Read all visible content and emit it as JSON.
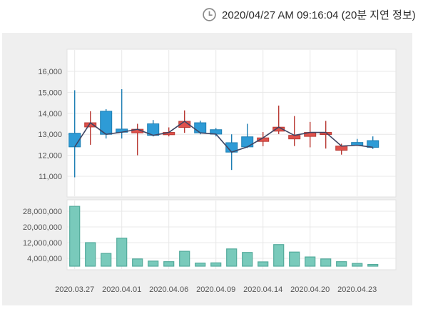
{
  "header": {
    "timestamp_text": "2020/04/27 AM 09:16:04 (20분 지연 정보)",
    "clock_icon": "clock-outline"
  },
  "colors": {
    "panel_bg": "#efefef",
    "plot_bg": "#ffffff",
    "plot_border": "#e2e2e2",
    "grid": "#e8e8e8",
    "axis_text": "#555555",
    "header_text": "#2b2b2b",
    "icon_gray": "#8a8a8a",
    "candle_up_fill": "#e0524c",
    "candle_up_border": "#b93a34",
    "candle_down_fill": "#2e9bd6",
    "candle_down_border": "#1d7eb3",
    "close_line": "#3f4563",
    "volume_fill": "#79cabb",
    "volume_border": "#54ab9c"
  },
  "chart_data": {
    "type": "candlestick-with-volume",
    "title": "",
    "legend": [],
    "grid": "on",
    "price_axis": {
      "ticks": [
        {
          "value": 16000,
          "label": "16,000"
        },
        {
          "value": 15000,
          "label": "15,000"
        },
        {
          "value": 14000,
          "label": "14,000"
        },
        {
          "value": 13000,
          "label": "13,000"
        },
        {
          "value": 12000,
          "label": "12,000"
        },
        {
          "value": 11000,
          "label": "11,000"
        }
      ],
      "ylim": [
        10000,
        17050
      ]
    },
    "volume_axis": {
      "ticks": [
        {
          "value": 28000000,
          "label": "28,000,000"
        },
        {
          "value": 20000000,
          "label": "20,000,000"
        },
        {
          "value": 12000000,
          "label": "12,000,000"
        },
        {
          "value": 4000000,
          "label": "4,000,000"
        }
      ],
      "ylim": [
        0,
        34000000
      ]
    },
    "x_ticks": [
      {
        "candle_index": 0,
        "label": "2020.03.27"
      },
      {
        "candle_index": 3,
        "label": "2020.04.01"
      },
      {
        "candle_index": 6,
        "label": "2020.04.06"
      },
      {
        "candle_index": 9,
        "label": "2020.04.09"
      },
      {
        "candle_index": 12,
        "label": "2020.04.14"
      },
      {
        "candle_index": 15,
        "label": "2020.04.20"
      },
      {
        "candle_index": 18,
        "label": "2020.04.23"
      }
    ],
    "candles": [
      {
        "open": 13050,
        "high": 15100,
        "low": 10950,
        "close": 12400,
        "volume": 30500000
      },
      {
        "open": 13350,
        "high": 14100,
        "low": 12500,
        "close": 13550,
        "volume": 12000000
      },
      {
        "open": 14100,
        "high": 14200,
        "low": 12800,
        "close": 13000,
        "volume": 6500000
      },
      {
        "open": 13250,
        "high": 15150,
        "low": 12800,
        "close": 13100,
        "volume": 14300000
      },
      {
        "open": 13070,
        "high": 13500,
        "low": 12000,
        "close": 13240,
        "volume": 3700000
      },
      {
        "open": 13500,
        "high": 13680,
        "low": 12900,
        "close": 12950,
        "volume": 2600000
      },
      {
        "open": 12980,
        "high": 13330,
        "low": 12900,
        "close": 13090,
        "volume": 2300000
      },
      {
        "open": 13330,
        "high": 14140,
        "low": 13070,
        "close": 13620,
        "volume": 7600000
      },
      {
        "open": 13550,
        "high": 13650,
        "low": 13000,
        "close": 13070,
        "volume": 1600000
      },
      {
        "open": 13220,
        "high": 13300,
        "low": 12900,
        "close": 13010,
        "volume": 1700000
      },
      {
        "open": 12600,
        "high": 13000,
        "low": 11300,
        "close": 12150,
        "volume": 8800000
      },
      {
        "open": 12880,
        "high": 13500,
        "low": 12350,
        "close": 12400,
        "volume": 7000000
      },
      {
        "open": 12660,
        "high": 13110,
        "low": 12430,
        "close": 12830,
        "volume": 2200000
      },
      {
        "open": 13150,
        "high": 14370,
        "low": 13010,
        "close": 13340,
        "volume": 11000000
      },
      {
        "open": 12780,
        "high": 13870,
        "low": 12440,
        "close": 12950,
        "volume": 7200000
      },
      {
        "open": 12900,
        "high": 13590,
        "low": 12380,
        "close": 13090,
        "volume": 4700000
      },
      {
        "open": 12990,
        "high": 13640,
        "low": 12320,
        "close": 13090,
        "volume": 3700000
      },
      {
        "open": 12240,
        "high": 12550,
        "low": 12030,
        "close": 12440,
        "volume": 2300000
      },
      {
        "open": 12610,
        "high": 12780,
        "low": 12460,
        "close": 12480,
        "volume": 1400000
      },
      {
        "open": 12700,
        "high": 12900,
        "low": 12300,
        "close": 12380,
        "volume": 900000
      }
    ]
  }
}
